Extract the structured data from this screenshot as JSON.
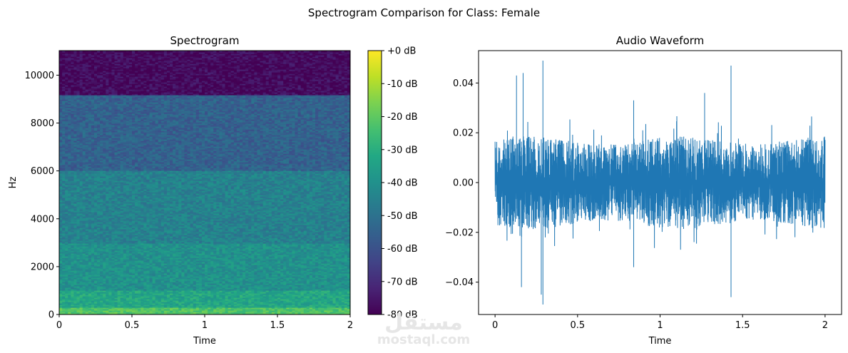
{
  "figure": {
    "suptitle": "Spectrogram Comparison for Class: Female"
  },
  "watermark": {
    "arabic": "مستقل",
    "latin": "mostaql.com"
  },
  "chart_data": [
    {
      "type": "heatmap",
      "title": "Spectrogram",
      "xlabel": "Time",
      "ylabel": "Hz",
      "xlim": [
        0,
        2.0
      ],
      "ylim": [
        0,
        11025
      ],
      "xticks": [
        0,
        0.5,
        1,
        1.5,
        2
      ],
      "xtick_labels": [
        "0",
        "0.5",
        "1",
        "1.5",
        "2"
      ],
      "yticks": [
        0,
        2000,
        4000,
        6000,
        8000,
        10000
      ],
      "ytick_labels": [
        "0",
        "2000",
        "4000",
        "6000",
        "8000",
        "10000"
      ],
      "colormap": "viridis",
      "band_levels_db": [
        {
          "hz_range": [
            0,
            300
          ],
          "db": -22
        },
        {
          "hz_range": [
            300,
            1000
          ],
          "db": -33
        },
        {
          "hz_range": [
            1000,
            3000
          ],
          "db": -40
        },
        {
          "hz_range": [
            3000,
            6000
          ],
          "db": -45
        },
        {
          "hz_range": [
            6000,
            9200
          ],
          "db": -55
        },
        {
          "hz_range": [
            9200,
            11025
          ],
          "db": -78
        }
      ],
      "colorbar": {
        "range_db": [
          -80,
          0
        ],
        "ticks": [
          0,
          -10,
          -20,
          -30,
          -40,
          -50,
          -60,
          -70,
          -80
        ],
        "tick_labels": [
          "+0 dB",
          "-10 dB",
          "-20 dB",
          "-30 dB",
          "-40 dB",
          "-50 dB",
          "-60 dB",
          "-70 dB",
          "-80 dB"
        ]
      }
    },
    {
      "type": "line",
      "title": "Audio Waveform",
      "xlabel": "Time",
      "ylabel": "",
      "xlim": [
        -0.1,
        2.1
      ],
      "ylim": [
        -0.053,
        0.053
      ],
      "xticks": [
        0,
        0.5,
        1,
        1.5,
        2
      ],
      "xtick_labels": [
        "0",
        "0.5",
        "1",
        "1.5",
        "2"
      ],
      "yticks": [
        -0.04,
        -0.02,
        0.0,
        0.02,
        0.04
      ],
      "ytick_labels": [
        "−0.04",
        "−0.02",
        "0.00",
        "0.02",
        "0.04"
      ],
      "color": "#1f77b4",
      "duration_s": 2.0,
      "typical_amplitude": 0.017,
      "peaks": [
        {
          "t": 0.29,
          "value": 0.049
        },
        {
          "t": 0.29,
          "value": -0.049
        },
        {
          "t": 1.43,
          "value": 0.047
        },
        {
          "t": 1.43,
          "value": -0.046
        },
        {
          "t": 0.17,
          "value": 0.044
        },
        {
          "t": 0.16,
          "value": -0.042
        },
        {
          "t": 0.13,
          "value": 0.043
        },
        {
          "t": 0.28,
          "value": -0.045
        },
        {
          "t": 1.27,
          "value": 0.036
        },
        {
          "t": 0.84,
          "value": 0.033
        },
        {
          "t": 0.84,
          "value": -0.034
        }
      ]
    }
  ]
}
